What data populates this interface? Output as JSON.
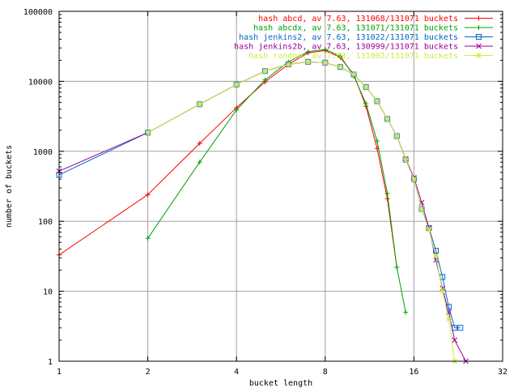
{
  "chart_data": {
    "type": "line",
    "xlabel": "bucket length",
    "ylabel": "number of buckets",
    "x_scale": "log2",
    "y_scale": "log10",
    "xlim": [
      1,
      32
    ],
    "ylim": [
      1,
      100000
    ],
    "grid": true,
    "legend_position": "top-right",
    "x_ticks": [
      1,
      2,
      4,
      8,
      16,
      32
    ],
    "x_tick_labels": [
      "1",
      "2",
      "4",
      "8",
      "16",
      "32"
    ],
    "y_ticks": [
      1,
      10,
      100,
      1000,
      10000,
      100000
    ],
    "y_tick_labels": [
      "1",
      "10",
      "100",
      "1000",
      "10000",
      "100000"
    ],
    "series": [
      {
        "name": "hash abcd, av 7.63, 131068/131071 buckets",
        "color": "#ff0000",
        "marker": "plus",
        "points": [
          [
            1,
            33
          ],
          [
            2,
            240
          ],
          [
            3,
            1300
          ],
          [
            4,
            4200
          ],
          [
            5,
            9800
          ],
          [
            6,
            17500
          ],
          [
            7,
            25500
          ],
          [
            8,
            27500
          ],
          [
            9,
            22000
          ],
          [
            10,
            12500
          ],
          [
            11,
            4400
          ],
          [
            12,
            1100
          ],
          [
            13,
            210
          ],
          [
            14,
            22
          ]
        ]
      },
      {
        "name": "hash abcdx, av 7.63, 131071/131071 buckets",
        "color": "#00a000",
        "marker": "plus",
        "points": [
          [
            2,
            57
          ],
          [
            3,
            700
          ],
          [
            4,
            3900
          ],
          [
            5,
            10500
          ],
          [
            6,
            19000
          ],
          [
            7,
            26500
          ],
          [
            8,
            28500
          ],
          [
            9,
            23000
          ],
          [
            10,
            12000
          ],
          [
            11,
            4800
          ],
          [
            12,
            1400
          ],
          [
            13,
            250
          ],
          [
            14,
            22
          ],
          [
            15,
            5
          ]
        ]
      },
      {
        "name": "hash jenkins2, av 7.63, 131022/131071 buckets",
        "color": "#0066cc",
        "marker": "square",
        "points": [
          [
            1,
            460
          ],
          [
            2,
            1850
          ],
          [
            3,
            4700
          ],
          [
            4,
            9000
          ],
          [
            5,
            14000
          ],
          [
            6,
            17500
          ],
          [
            7,
            19000
          ],
          [
            8,
            18500
          ],
          [
            9,
            16000
          ],
          [
            10,
            12500
          ],
          [
            11,
            8300
          ],
          [
            12,
            5200
          ],
          [
            13,
            2900
          ],
          [
            14,
            1650
          ],
          [
            15,
            760
          ],
          [
            16,
            400
          ],
          [
            17,
            150
          ],
          [
            18,
            80
          ],
          [
            19,
            38
          ],
          [
            20,
            16
          ],
          [
            21,
            6
          ],
          [
            22,
            3
          ],
          [
            23,
            3
          ]
        ]
      },
      {
        "name": "hash jenkins2b, av 7.63, 130999/131071 buckets",
        "color": "#990099",
        "marker": "cross",
        "points": [
          [
            1,
            520
          ],
          [
            2,
            1850
          ],
          [
            3,
            4700
          ],
          [
            4,
            9000
          ],
          [
            5,
            14000
          ],
          [
            6,
            17500
          ],
          [
            7,
            19000
          ],
          [
            8,
            18500
          ],
          [
            9,
            16000
          ],
          [
            10,
            12500
          ],
          [
            11,
            8300
          ],
          [
            12,
            5200
          ],
          [
            13,
            2900
          ],
          [
            14,
            1650
          ],
          [
            15,
            780
          ],
          [
            16,
            420
          ],
          [
            17,
            185
          ],
          [
            18,
            80
          ],
          [
            19,
            28
          ],
          [
            20,
            11
          ],
          [
            21,
            5
          ],
          [
            22,
            2
          ],
          [
            24,
            1
          ]
        ]
      },
      {
        "name": "hash random, av 7.63, 131002/131071 buckets",
        "color": "#ccee44",
        "marker": "star",
        "points": [
          [
            2,
            1850
          ],
          [
            3,
            4700
          ],
          [
            4,
            9000
          ],
          [
            5,
            14000
          ],
          [
            6,
            17500
          ],
          [
            7,
            19000
          ],
          [
            8,
            18500
          ],
          [
            9,
            16000
          ],
          [
            10,
            12500
          ],
          [
            11,
            8300
          ],
          [
            12,
            5200
          ],
          [
            13,
            2900
          ],
          [
            14,
            1650
          ],
          [
            15,
            760
          ],
          [
            16,
            400
          ],
          [
            17,
            150
          ],
          [
            18,
            75
          ],
          [
            19,
            32
          ],
          [
            20,
            10
          ],
          [
            21,
            4
          ],
          [
            22,
            1
          ]
        ]
      }
    ]
  }
}
